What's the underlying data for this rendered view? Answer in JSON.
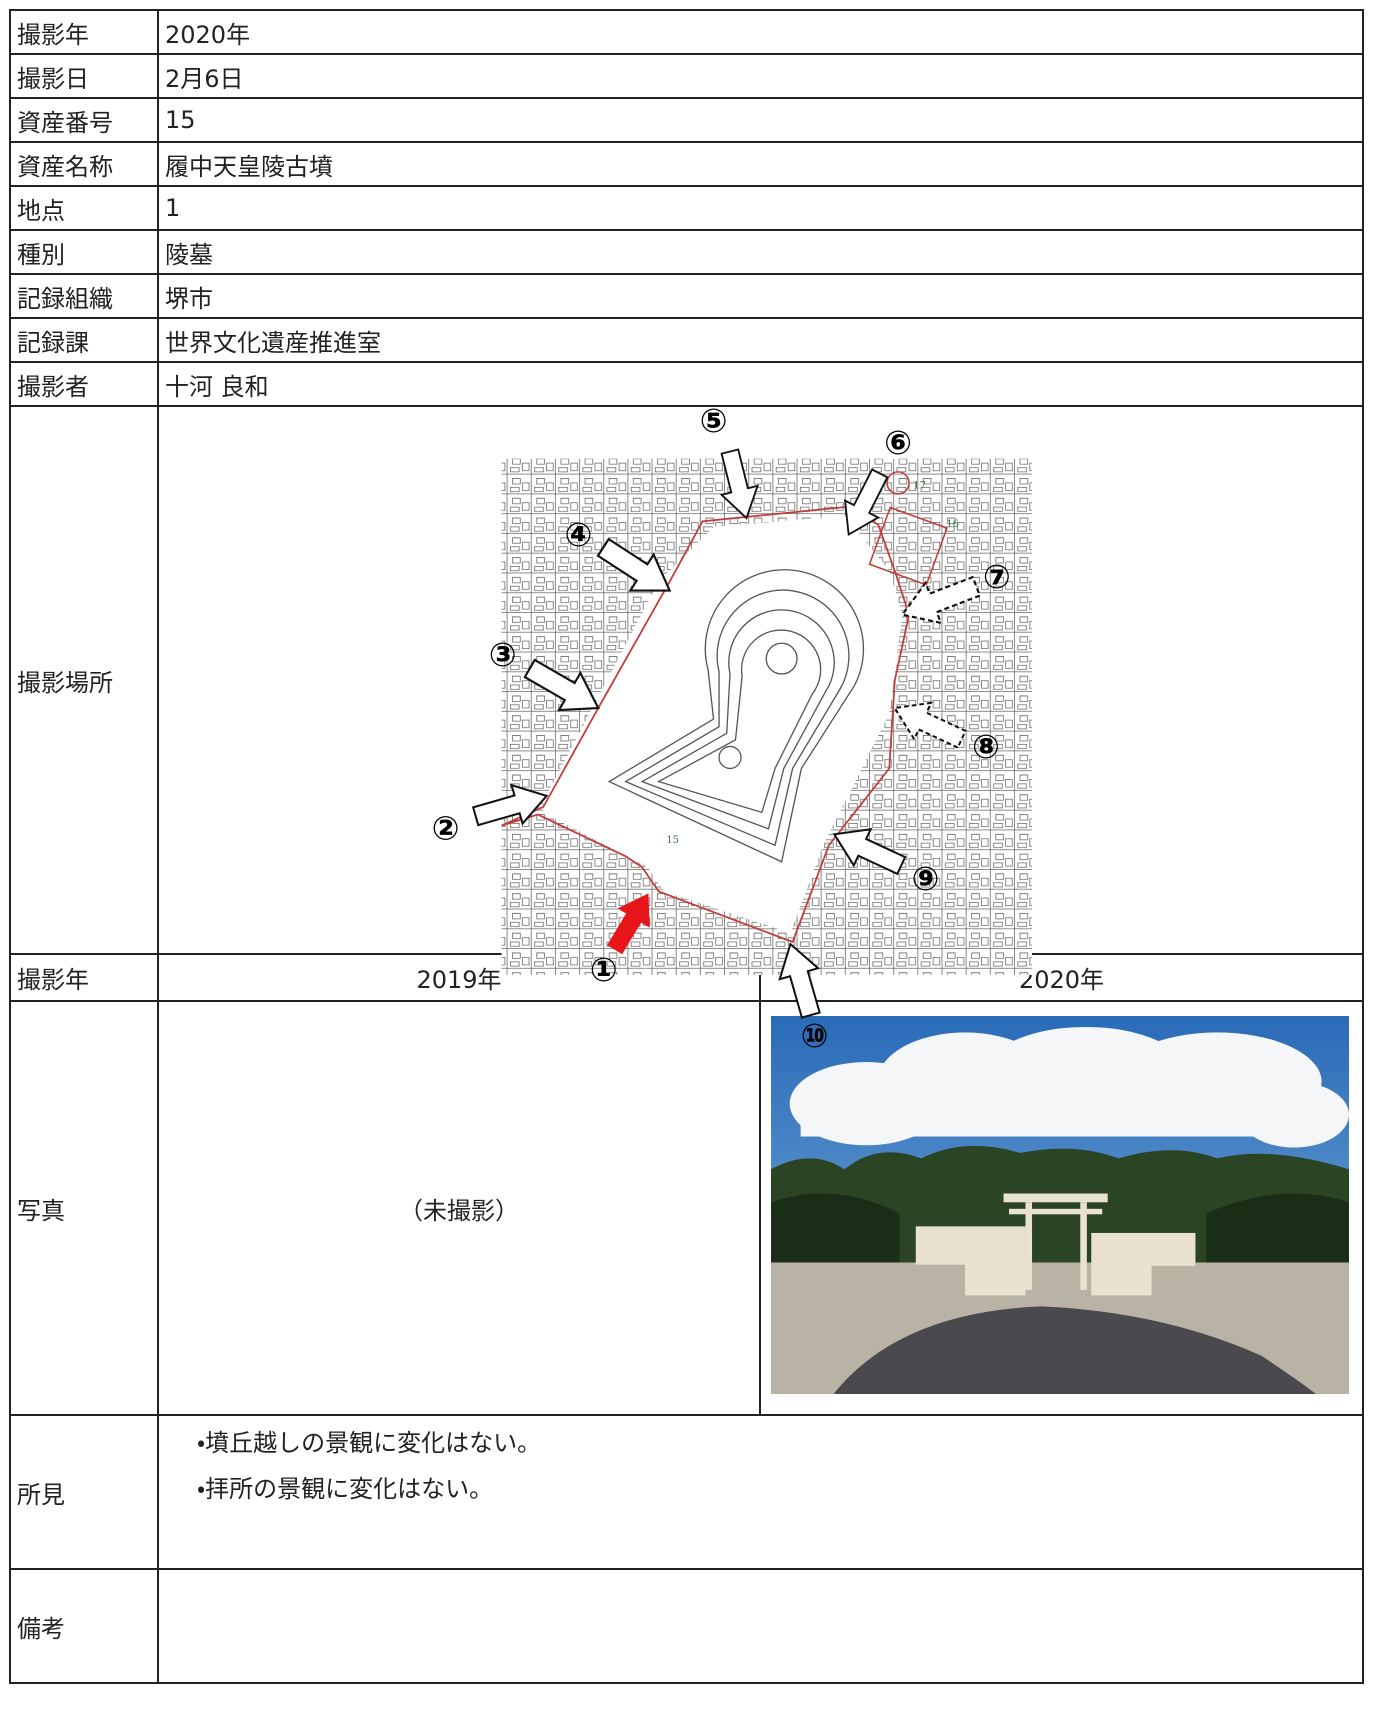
{
  "info_rows": [
    [
      "撮影年",
      "2020年"
    ],
    [
      "撮影日",
      "2月6日"
    ],
    [
      "資産番号",
      "15"
    ],
    [
      "資産名称",
      "履中天皇陵古墳"
    ],
    [
      "地点",
      "1"
    ],
    [
      "種別",
      "陵墓"
    ],
    [
      "記録組織",
      "堺市"
    ],
    [
      "記録課",
      "世界文化遺産推進室"
    ],
    [
      "撮影者",
      "十河 良和"
    ]
  ],
  "location": {
    "label": "撮影場所",
    "markers": [
      "①",
      "②",
      "③",
      "④",
      "⑤",
      "⑥",
      "⑦",
      "⑧",
      "⑨",
      "⑩"
    ],
    "map_labels": [
      "15",
      "16",
      "17"
    ]
  },
  "year_row": {
    "label": "撮影年",
    "years": [
      "2019年",
      "2020年"
    ]
  },
  "photo_row": {
    "label": "写真",
    "not_taken": "（未撮影）"
  },
  "findings": {
    "label": "所見",
    "lines": [
      "・墳丘越しの景観に変化はない。",
      "・拝所の景観に変化はない。"
    ]
  },
  "remarks": {
    "label": "備考"
  }
}
